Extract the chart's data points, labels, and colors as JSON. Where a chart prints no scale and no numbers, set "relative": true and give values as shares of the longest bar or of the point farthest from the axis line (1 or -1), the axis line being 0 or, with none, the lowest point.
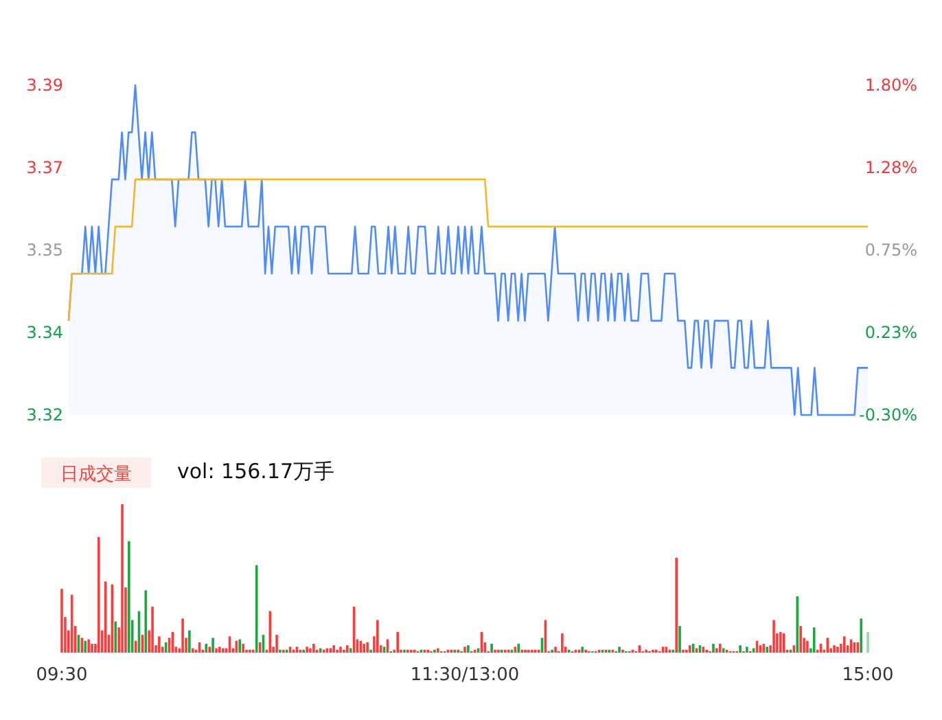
{
  "chart_data": [
    {
      "type": "line",
      "ylim": [
        3.32,
        3.39
      ],
      "yticks": [
        {
          "value": 3.32,
          "label": "3.32"
        },
        {
          "value": 3.3375,
          "label": "3.34"
        },
        {
          "value": 3.355,
          "label": "3.35"
        },
        {
          "value": 3.3725,
          "label": "3.37"
        },
        {
          "value": 3.39,
          "label": "3.39"
        }
      ],
      "y2lim": [
        -0.3,
        1.8
      ],
      "y2ticks": [
        {
          "value": -0.3,
          "label": "-0.30%"
        },
        {
          "value": 0.225,
          "label": "0.23%"
        },
        {
          "value": 0.75,
          "label": "0.75%"
        },
        {
          "value": 1.275,
          "label": "1.28%"
        },
        {
          "value": 1.8,
          "label": "1.80%"
        }
      ],
      "categories": [
        null,
        null,
        null,
        null,
        null,
        null,
        null,
        null,
        null,
        null,
        null,
        null,
        null,
        null,
        null,
        null,
        null,
        null,
        null,
        null,
        null,
        null,
        null,
        null,
        null,
        null,
        null,
        null,
        null,
        null,
        null,
        null,
        null,
        null,
        null,
        null,
        null,
        null,
        null,
        null,
        null,
        null,
        null,
        null,
        null,
        null,
        null,
        null,
        null,
        null,
        null,
        null,
        null,
        null,
        null,
        null,
        null,
        null,
        null,
        null,
        null,
        null,
        null,
        null,
        null,
        null,
        null,
        null,
        null,
        null,
        null,
        null,
        null,
        null,
        null,
        null,
        null,
        null,
        null,
        null,
        null,
        null,
        null,
        null,
        null,
        null,
        null,
        null,
        null,
        null,
        null,
        null,
        null,
        null,
        null,
        null,
        null,
        null,
        null,
        null,
        null,
        null,
        null,
        null,
        null,
        null,
        null,
        null,
        null,
        null,
        null,
        null,
        null,
        null,
        null,
        null,
        null,
        null,
        null,
        null,
        null,
        null,
        null,
        null,
        null,
        null,
        null,
        null,
        null,
        null,
        null,
        null,
        null,
        null,
        null,
        null,
        null,
        null,
        null,
        null,
        null,
        null,
        null,
        null,
        null,
        null,
        null,
        null,
        null,
        null,
        null,
        null,
        null,
        null,
        null,
        null,
        null,
        null,
        null,
        null,
        null,
        null,
        null,
        null,
        null,
        null,
        null,
        null,
        null,
        null,
        null,
        null,
        null,
        null,
        null,
        null,
        null,
        null,
        null,
        null,
        null,
        null,
        null,
        null,
        null,
        null,
        null,
        null,
        null,
        null,
        null,
        null,
        null,
        null,
        null,
        null,
        null,
        null,
        null,
        null,
        null,
        null,
        null,
        null,
        null,
        null,
        null,
        null,
        null,
        null,
        null,
        null,
        null,
        null,
        null,
        null,
        null,
        null,
        null,
        null,
        null,
        null,
        null,
        null,
        null,
        null,
        null,
        null,
        null,
        null,
        null,
        null,
        null,
        null,
        null,
        null,
        null,
        null,
        null,
        null,
        null
      ],
      "series": [
        {
          "type": "area",
          "color": "#4f8bf9",
          "values": [
            3.34,
            3.35,
            3.35,
            3.35,
            3.35,
            3.36,
            3.35,
            3.36,
            3.35,
            3.36,
            3.35,
            3.35,
            3.36,
            3.37,
            3.37,
            3.37,
            3.38,
            3.37,
            3.38,
            3.38,
            3.39,
            3.38,
            3.37,
            3.38,
            3.37,
            3.38,
            3.37,
            3.37,
            3.37,
            3.37,
            3.37,
            3.37,
            3.36,
            3.37,
            3.37,
            3.37,
            3.37,
            3.38,
            3.38,
            3.37,
            3.37,
            3.37,
            3.36,
            3.37,
            3.37,
            3.36,
            3.37,
            3.36,
            3.36,
            3.36,
            3.36,
            3.36,
            3.36,
            3.37,
            3.36,
            3.36,
            3.36,
            3.36,
            3.37,
            3.35,
            3.36,
            3.35,
            3.36,
            3.36,
            3.36,
            3.36,
            3.36,
            3.35,
            3.36,
            3.35,
            3.36,
            3.36,
            3.36,
            3.35,
            3.36,
            3.36,
            3.36,
            3.36,
            3.35,
            3.35,
            3.35,
            3.35,
            3.35,
            3.35,
            3.35,
            3.35,
            3.36,
            3.35,
            3.35,
            3.35,
            3.35,
            3.36,
            3.36,
            3.35,
            3.35,
            3.35,
            3.36,
            3.35,
            3.36,
            3.35,
            3.35,
            3.35,
            3.36,
            3.35,
            3.35,
            3.36,
            3.36,
            3.36,
            3.35,
            3.35,
            3.35,
            3.36,
            3.35,
            3.35,
            3.36,
            3.35,
            3.35,
            3.36,
            3.35,
            3.36,
            3.35,
            3.36,
            3.35,
            3.35,
            3.36,
            3.35,
            3.35,
            3.35,
            3.35,
            3.34,
            3.35,
            3.35,
            3.34,
            3.35,
            3.35,
            3.34,
            3.35,
            3.34,
            3.35,
            3.35,
            3.35,
            3.35,
            3.35,
            3.35,
            3.34,
            3.35,
            3.36,
            3.35,
            3.35,
            3.35,
            3.35,
            3.35,
            3.35,
            3.34,
            3.35,
            3.35,
            3.34,
            3.35,
            3.35,
            3.34,
            3.35,
            3.35,
            3.34,
            3.35,
            3.34,
            3.35,
            3.35,
            3.34,
            3.35,
            3.34,
            3.34,
            3.34,
            3.35,
            3.35,
            3.35,
            3.34,
            3.34,
            3.34,
            3.34,
            3.35,
            3.35,
            3.35,
            3.35,
            3.34,
            3.34,
            3.34,
            3.33,
            3.33,
            3.34,
            3.34,
            3.33,
            3.34,
            3.34,
            3.33,
            3.34,
            3.34,
            3.34,
            3.34,
            3.34,
            3.33,
            3.33,
            3.34,
            3.34,
            3.33,
            3.33,
            3.34,
            3.33,
            3.33,
            3.33,
            3.33,
            3.34,
            3.33,
            3.33,
            3.33,
            3.33,
            3.33,
            3.33,
            3.33,
            3.32,
            3.33,
            3.32,
            3.32,
            3.32,
            3.32,
            3.33,
            3.32,
            3.32,
            3.32,
            3.32,
            3.32,
            3.32,
            3.32,
            3.32,
            3.32,
            3.32,
            3.32,
            3.32,
            3.33,
            3.33,
            3.33,
            3.33
          ]
        },
        {
          "type": "line",
          "color": "#f6b52a",
          "values": [
            3.34,
            3.35,
            3.35,
            3.35,
            3.35,
            3.35,
            3.35,
            3.35,
            3.35,
            3.35,
            3.35,
            3.35,
            3.35,
            3.35,
            3.36,
            3.36,
            3.36,
            3.36,
            3.36,
            3.36,
            3.37,
            3.37,
            3.37,
            3.37,
            3.37,
            3.37,
            3.37,
            3.37,
            3.37,
            3.37,
            3.37,
            3.37,
            3.37,
            3.37,
            3.37,
            3.37,
            3.37,
            3.37,
            3.37,
            3.37,
            3.37,
            3.37,
            3.37,
            3.37,
            3.37,
            3.37,
            3.37,
            3.37,
            3.37,
            3.37,
            3.37,
            3.37,
            3.37,
            3.37,
            3.37,
            3.37,
            3.37,
            3.37,
            3.37,
            3.37,
            3.37,
            3.37,
            3.37,
            3.37,
            3.37,
            3.37,
            3.37,
            3.37,
            3.37,
            3.37,
            3.37,
            3.37,
            3.37,
            3.37,
            3.37,
            3.37,
            3.37,
            3.37,
            3.37,
            3.37,
            3.37,
            3.37,
            3.37,
            3.37,
            3.37,
            3.37,
            3.37,
            3.37,
            3.37,
            3.37,
            3.37,
            3.37,
            3.37,
            3.37,
            3.37,
            3.37,
            3.37,
            3.37,
            3.37,
            3.37,
            3.37,
            3.37,
            3.37,
            3.37,
            3.37,
            3.37,
            3.37,
            3.37,
            3.37,
            3.37,
            3.37,
            3.37,
            3.37,
            3.37,
            3.37,
            3.37,
            3.37,
            3.37,
            3.37,
            3.37,
            3.37,
            3.37,
            3.37,
            3.37,
            3.37,
            3.37,
            3.36,
            3.36,
            3.36,
            3.36,
            3.36,
            3.36,
            3.36,
            3.36,
            3.36,
            3.36,
            3.36,
            3.36,
            3.36,
            3.36,
            3.36,
            3.36,
            3.36,
            3.36,
            3.36,
            3.36,
            3.36,
            3.36,
            3.36,
            3.36,
            3.36,
            3.36,
            3.36,
            3.36,
            3.36,
            3.36,
            3.36,
            3.36,
            3.36,
            3.36,
            3.36,
            3.36,
            3.36,
            3.36,
            3.36,
            3.36,
            3.36,
            3.36,
            3.36,
            3.36,
            3.36,
            3.36,
            3.36,
            3.36,
            3.36,
            3.36,
            3.36,
            3.36,
            3.36,
            3.36,
            3.36,
            3.36,
            3.36,
            3.36,
            3.36,
            3.36,
            3.36,
            3.36,
            3.36,
            3.36,
            3.36,
            3.36,
            3.36,
            3.36,
            3.36,
            3.36,
            3.36,
            3.36,
            3.36,
            3.36,
            3.36,
            3.36,
            3.36,
            3.36,
            3.36,
            3.36,
            3.36,
            3.36,
            3.36,
            3.36,
            3.36,
            3.36,
            3.36,
            3.36,
            3.36,
            3.36,
            3.36,
            3.36,
            3.36,
            3.36,
            3.36,
            3.36,
            3.36,
            3.36,
            3.36,
            3.36,
            3.36,
            3.36,
            3.36,
            3.36,
            3.36,
            3.36,
            3.36,
            3.36,
            3.36,
            3.36,
            3.36,
            3.36,
            3.36,
            3.36,
            3.36
          ]
        }
      ]
    },
    {
      "type": "bar",
      "relative": true,
      "annotations": [
        "日成交量",
        "vol: 156.17万手"
      ],
      "categories": [
        "09:30",
        null,
        null,
        null,
        null,
        null,
        null,
        null,
        null,
        null,
        null,
        null,
        null,
        null,
        null,
        null,
        null,
        null,
        null,
        null,
        null,
        null,
        null,
        null,
        null,
        null,
        null,
        null,
        null,
        null,
        null,
        null,
        null,
        null,
        null,
        null,
        null,
        null,
        null,
        null,
        null,
        null,
        null,
        null,
        null,
        null,
        null,
        null,
        null,
        null,
        null,
        null,
        null,
        null,
        null,
        null,
        null,
        null,
        null,
        null,
        null,
        null,
        null,
        null,
        null,
        null,
        null,
        null,
        null,
        null,
        null,
        null,
        null,
        null,
        null,
        null,
        null,
        null,
        null,
        null,
        null,
        null,
        null,
        null,
        null,
        null,
        null,
        null,
        null,
        null,
        null,
        null,
        null,
        null,
        null,
        null,
        null,
        null,
        null,
        null,
        null,
        null,
        null,
        null,
        null,
        null,
        null,
        null,
        null,
        null,
        null,
        null,
        null,
        null,
        null,
        null,
        null,
        null,
        null,
        null,
        "11:30/13:00",
        null,
        null,
        null,
        null,
        null,
        null,
        null,
        null,
        null,
        null,
        null,
        null,
        null,
        null,
        null,
        null,
        null,
        null,
        null,
        null,
        null,
        null,
        null,
        null,
        null,
        null,
        null,
        null,
        null,
        null,
        null,
        null,
        null,
        null,
        null,
        null,
        null,
        null,
        null,
        null,
        null,
        null,
        null,
        null,
        null,
        null,
        null,
        null,
        null,
        null,
        null,
        null,
        null,
        null,
        null,
        null,
        null,
        null,
        null,
        null,
        null,
        null,
        null,
        null,
        null,
        null,
        null,
        null,
        null,
        null,
        null,
        null,
        null,
        null,
        null,
        null,
        null,
        null,
        null,
        null,
        null,
        null,
        null,
        null,
        null,
        null,
        null,
        null,
        null,
        null,
        null,
        null,
        null,
        null,
        null,
        null,
        null,
        null,
        null,
        null,
        null,
        null,
        null,
        null,
        null,
        null,
        null,
        null,
        null,
        null,
        null,
        null,
        null,
        null,
        null,
        null,
        null,
        null,
        null,
        "15:00"
      ],
      "values": [
        0.43,
        0.24,
        0.15,
        0.39,
        0.18,
        0.12,
        0.1,
        0.08,
        0.09,
        0.06,
        0.06,
        0.78,
        0.15,
        0.48,
        0.12,
        0.46,
        0.21,
        0.17,
        1,
        0.44,
        0.75,
        0.22,
        0.08,
        0.28,
        0.12,
        0.42,
        0.15,
        0.31,
        0.05,
        0.11,
        0.04,
        0.07,
        0.1,
        0.14,
        0.04,
        0.03,
        0.23,
        0.1,
        0.15,
        0.03,
        0.02,
        0.07,
        0.02,
        0.06,
        0.04,
        0.1,
        0.03,
        0.04,
        0.03,
        0.03,
        0.11,
        0.03,
        0.08,
        0.09,
        0.06,
        0.02,
        0.02,
        0.02,
        0.59,
        0.07,
        0.12,
        0.02,
        0.28,
        0.04,
        0.12,
        0.02,
        0.02,
        0.02,
        0.04,
        0.02,
        0.04,
        0.02,
        0.02,
        0.04,
        0.03,
        0.06,
        0.02,
        0.03,
        0.02,
        0.03,
        0.03,
        0.05,
        0.02,
        0.04,
        0.02,
        0.05,
        0.03,
        0.31,
        0.09,
        0.08,
        0.06,
        0.07,
        0.02,
        0.11,
        0.22,
        0.05,
        0.04,
        0.09,
        0.01,
        0.02,
        0.14,
        0.02,
        0.02,
        0.02,
        0.02,
        0.02,
        0.01,
        0.02,
        0.02,
        0.02,
        0.01,
        0.02,
        0.03,
        0.01,
        0.01,
        0.02,
        0.02,
        0.02,
        0.02,
        0.01,
        0.04,
        0.05,
        0.01,
        0.02,
        0.03,
        0.14,
        0.07,
        0.01,
        0.06,
        0.02,
        0.02,
        0.02,
        0.02,
        0.02,
        0.02,
        0.04,
        0.06,
        0.02,
        0.02,
        0.02,
        0.02,
        0.02,
        0.02,
        0.1,
        0.22,
        0.01,
        0.02,
        0.04,
        0.01,
        0.13,
        0.04,
        0.02,
        0.01,
        0.02,
        0.02,
        0.04,
        0.02,
        0.01,
        0.01,
        0.01,
        0.02,
        0.02,
        0.02,
        0.02,
        0.02,
        0.01,
        0.04,
        0.02,
        0.01,
        0.01,
        0.02,
        0.01,
        0.05,
        0.01,
        0.02,
        0.01,
        0.02,
        0.02,
        0.01,
        0.04,
        0.04,
        0.02,
        0.02,
        0.64,
        0.18,
        0.02,
        0.02,
        0.05,
        0.06,
        0.03,
        0.05,
        0.04,
        0.02,
        0.01,
        0.06,
        0.03,
        0.06,
        0.03,
        0.02,
        0.01,
        0.01,
        0.01,
        0.05,
        0.01,
        0.04,
        0.01,
        0.03,
        0.08,
        0.05,
        0.06,
        0.04,
        0.05,
        0.22,
        0.13,
        0.14,
        0.13,
        0.02,
        0.02,
        0.05,
        0.38,
        0.18,
        0.1,
        0.08,
        0.03,
        0.17,
        0.02,
        0.06,
        0.02,
        0.1,
        0.03,
        0.05,
        0.04,
        0.06,
        0.11,
        0.05,
        0.09,
        0.07,
        0.07,
        0.23,
        null,
        0.14
      ],
      "colors": [
        "#ff3b3b",
        "#ff3b3b",
        "#ff3b3b",
        "#ff3b3b",
        "#ff3b3b",
        "#1aa93c",
        "#ff3b3b",
        "#1aa93c",
        "#ff3b3b",
        "#ff3b3b",
        "#ff3b3b",
        "#ff3b3b",
        "#ff3b3b",
        "#ff3b3b",
        "#ff3b3b",
        "#ff3b3b",
        "#1aa93c",
        "#ff3b3b",
        "#ff3b3b",
        "#ff3b3b",
        "#1aa93c",
        "#1aa93c",
        "#ff3b3b",
        "#1aa93c",
        "#ff3b3b",
        "#1aa93c",
        "#ff3b3b",
        "#ff3b3b",
        "#ff3b3b",
        "#ff3b3b",
        "#ff3b3b",
        "#1aa93c",
        "#ff3b3b",
        "#ff3b3b",
        "#ff3b3b",
        "#ff3b3b",
        "#ff3b3b",
        "#ff3b3b",
        "#1aa93c",
        "#ff3b3b",
        "#ff3b3b",
        "#ff3b3b",
        "#ff3b3b",
        "#1aa93c",
        "#ff3b3b",
        "#1aa93c",
        "#ff3b3b",
        "#ff3b3b",
        "#ff3b3b",
        "#ff3b3b",
        "#ff3b3b",
        "#ff3b3b",
        "#ff3b3b",
        "#1aa93c",
        "#ff3b3b",
        "#ff3b3b",
        "#ff3b3b",
        "#ff3b3b",
        "#1aa93c",
        "#ff3b3b",
        "#1aa93c",
        "#ff3b3b",
        "#ff3b3b",
        "#ff3b3b",
        "#ff3b3b",
        "#1aa93c",
        "#ff3b3b",
        "#1aa93c",
        "#ff3b3b",
        "#ff3b3b",
        "#ff3b3b",
        "#ff3b3b",
        "#1aa93c",
        "#ff3b3b",
        "#ff3b3b",
        "#ff3b3b",
        "#ff3b3b",
        "#1aa93c",
        "#ff3b3b",
        "#ff3b3b",
        "#ff3b3b",
        "#ff3b3b",
        "#ff3b3b",
        "#ff3b3b",
        "#ff3b3b",
        "#ff3b3b",
        "#1aa93c",
        "#ff3b3b",
        "#ff3b3b",
        "#ff3b3b",
        "#ff3b3b",
        "#ff3b3b",
        "#1aa93c",
        "#ff3b3b",
        "#ff3b3b",
        "#ff3b3b",
        "#1aa93c",
        "#ff3b3b",
        "#1aa93c",
        "#ff3b3b",
        "#ff3b3b",
        "#ff3b3b",
        "#1aa93c",
        "#ff3b3b",
        "#ff3b3b",
        "#ff3b3b",
        "#ff3b3b",
        "#1aa93c",
        "#ff3b3b",
        "#ff3b3b",
        "#ff3b3b",
        "#1aa93c",
        "#ff3b3b",
        "#1aa93c",
        "#ff3b3b",
        "#ff3b3b",
        "#ff3b3b",
        "#1aa93c",
        "#ff3b3b",
        "#1aa93c",
        "#ff3b3b",
        "#1aa93c",
        "#ff3b3b",
        "#ff3b3b",
        "#1aa93c",
        "#ff3b3b",
        "#ff3b3b",
        "#ff3b3b",
        "#1aa93c",
        "#ff3b3b",
        "#ff3b3b",
        "#1aa93c",
        "#ff3b3b",
        "#ff3b3b",
        "#1aa93c",
        "#ff3b3b",
        "#1aa93c",
        "#ff3b3b",
        "#ff3b3b",
        "#ff3b3b",
        "#ff3b3b",
        "#ff3b3b",
        "#ff3b3b",
        "#1aa93c",
        "#ff3b3b",
        "#ff3b3b",
        "#1aa93c",
        "#ff3b3b",
        "#ff3b3b",
        "#ff3b3b",
        "#ff3b3b",
        "#1aa93c",
        "#ff3b3b",
        "#ff3b3b",
        "#ff3b3b",
        "#1aa93c",
        "#ff3b3b",
        "#ff3b3b",
        "#1aa93c",
        "#ff3b3b",
        "#ff3b3b",
        "#1aa93c",
        "#ff3b3b",
        "#1aa93c",
        "#ff3b3b",
        "#ff3b3b",
        "#1aa93c",
        "#ff3b3b",
        "#1aa93c",
        "#ff3b3b",
        "#ff3b3b",
        "#ff3b3b",
        "#ff3b3b",
        "#ff3b3b",
        "#ff3b3b",
        "#ff3b3b",
        "#ff3b3b",
        "#ff3b3b",
        "#ff3b3b",
        "#ff3b3b",
        "#ff3b3b",
        "#ff3b3b",
        "#1aa93c",
        "#ff3b3b",
        "#1aa93c",
        "#ff3b3b",
        "#ff3b3b",
        "#ff3b3b",
        "#1aa93c",
        "#ff3b3b",
        "#1aa93c",
        "#ff3b3b",
        "#ff3b3b",
        "#ff3b3b",
        "#1aa93c",
        "#ff3b3b",
        "#ff3b3b",
        "#1aa93c",
        "#ff3b3b",
        "#ff3b3b",
        "#ff3b3b",
        "#ff3b3b",
        "#1aa93c",
        "#ff3b3b",
        "#1aa93c",
        "#ff3b3b",
        "#1aa93c",
        "#ff3b3b",
        "#ff3b3b",
        "#ff3b3b",
        "#1aa93c",
        "#ff3b3b",
        "#ff3b3b",
        "#ff3b3b",
        "#ff3b3b",
        "#ff3b3b",
        "#ff3b3b",
        "#1aa93c",
        "#ff3b3b",
        "#1aa93c",
        "#ff3b3b",
        "#ff3b3b",
        "#ff3b3b",
        "#1aa93c",
        "#1aa93c",
        "#ff3b3b",
        "#ff3b3b",
        "#ff3b3b",
        "#ff3b3b",
        "#ff3b3b",
        "#ff3b3b",
        "#ff3b3b",
        "#ff3b3b",
        "#ff3b3b",
        "#ff3b3b",
        "#ff3b3b",
        "#ff3b3b",
        "#ff3b3b",
        "#1aa93c",
        null,
        "#93d9a3"
      ]
    }
  ]
}
